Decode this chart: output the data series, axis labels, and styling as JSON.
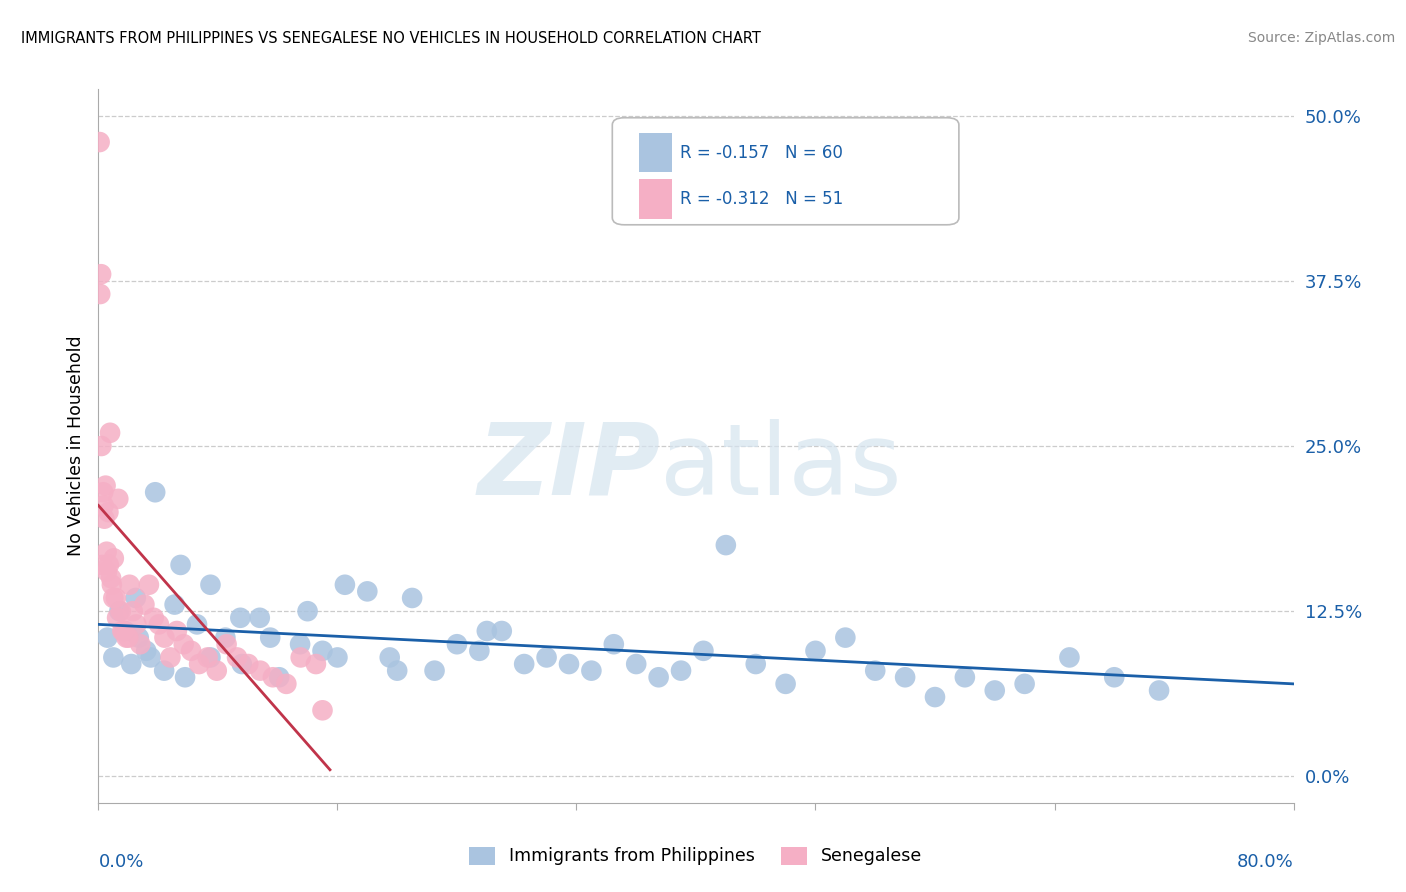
{
  "title": "IMMIGRANTS FROM PHILIPPINES VS SENEGALESE NO VEHICLES IN HOUSEHOLD CORRELATION CHART",
  "source": "Source: ZipAtlas.com",
  "ylabel": "No Vehicles in Household",
  "ytick_vals": [
    0.0,
    12.5,
    25.0,
    37.5,
    50.0
  ],
  "ytick_labels": [
    "0.0%",
    "12.5%",
    "25.0%",
    "37.5%",
    "50.0%"
  ],
  "xtick_vals": [
    0.0,
    16.0,
    32.0,
    48.0,
    64.0,
    80.0
  ],
  "xlim": [
    0.0,
    80.0
  ],
  "ylim": [
    -2.0,
    52.0
  ],
  "legend_blue_r": "-0.157",
  "legend_blue_n": "60",
  "legend_pink_r": "-0.312",
  "legend_pink_n": "51",
  "legend_label_blue": "Immigrants from Philippines",
  "legend_label_pink": "Senegalese",
  "blue_color": "#aac4e0",
  "pink_color": "#f5afc5",
  "blue_line_color": "#1a5fa8",
  "pink_line_color": "#c0344a",
  "watermark_zip": "ZIP",
  "watermark_atlas": "atlas",
  "blue_line_x": [
    0.0,
    80.0
  ],
  "blue_line_y": [
    11.5,
    7.0
  ],
  "pink_line_x": [
    0.0,
    15.5
  ],
  "pink_line_y": [
    20.5,
    0.5
  ],
  "blue_scatter_x": [
    0.6,
    1.0,
    1.4,
    1.8,
    2.2,
    2.7,
    3.2,
    3.8,
    4.4,
    5.1,
    5.8,
    6.6,
    7.5,
    8.5,
    9.6,
    10.8,
    12.1,
    13.5,
    15.0,
    16.5,
    18.0,
    19.5,
    21.0,
    22.5,
    24.0,
    25.5,
    27.0,
    28.5,
    30.0,
    31.5,
    33.0,
    34.5,
    36.0,
    37.5,
    39.0,
    40.5,
    42.0,
    44.0,
    46.0,
    48.0,
    50.0,
    52.0,
    54.0,
    56.0,
    58.0,
    60.0,
    62.0,
    65.0,
    68.0,
    71.0,
    2.5,
    3.5,
    5.5,
    7.5,
    9.5,
    11.5,
    14.0,
    16.0,
    20.0,
    26.0
  ],
  "blue_scatter_y": [
    10.5,
    9.0,
    12.5,
    11.0,
    8.5,
    10.5,
    9.5,
    21.5,
    8.0,
    13.0,
    7.5,
    11.5,
    9.0,
    10.5,
    8.5,
    12.0,
    7.5,
    10.0,
    9.5,
    14.5,
    14.0,
    9.0,
    13.5,
    8.0,
    10.0,
    9.5,
    11.0,
    8.5,
    9.0,
    8.5,
    8.0,
    10.0,
    8.5,
    7.5,
    8.0,
    9.5,
    17.5,
    8.5,
    7.0,
    9.5,
    10.5,
    8.0,
    7.5,
    6.0,
    7.5,
    6.5,
    7.0,
    9.0,
    7.5,
    6.5,
    13.5,
    9.0,
    16.0,
    14.5,
    12.0,
    10.5,
    12.5,
    9.0,
    8.0,
    11.0
  ],
  "pink_scatter_x": [
    0.08,
    0.12,
    0.18,
    0.25,
    0.32,
    0.4,
    0.48,
    0.57,
    0.67,
    0.78,
    0.9,
    1.03,
    1.17,
    1.33,
    1.5,
    1.68,
    1.87,
    2.08,
    2.3,
    2.54,
    2.8,
    3.08,
    3.38,
    3.7,
    4.05,
    4.42,
    4.82,
    5.25,
    5.71,
    6.21,
    6.74,
    7.31,
    7.92,
    8.58,
    9.28,
    10.03,
    10.83,
    11.68,
    12.58,
    13.54,
    14.56,
    15.0,
    0.2,
    0.35,
    0.55,
    0.7,
    0.85,
    1.0,
    1.25,
    1.6,
    2.0
  ],
  "pink_scatter_y": [
    48.0,
    36.5,
    38.0,
    16.0,
    21.5,
    19.5,
    22.0,
    15.5,
    20.0,
    26.0,
    14.5,
    16.5,
    13.5,
    21.0,
    12.5,
    11.0,
    10.5,
    14.5,
    12.5,
    11.5,
    10.0,
    13.0,
    14.5,
    12.0,
    11.5,
    10.5,
    9.0,
    11.0,
    10.0,
    9.5,
    8.5,
    9.0,
    8.0,
    10.0,
    9.0,
    8.5,
    8.0,
    7.5,
    7.0,
    9.0,
    8.5,
    5.0,
    25.0,
    20.5,
    17.0,
    16.0,
    15.0,
    13.5,
    12.0,
    11.0,
    10.5
  ]
}
